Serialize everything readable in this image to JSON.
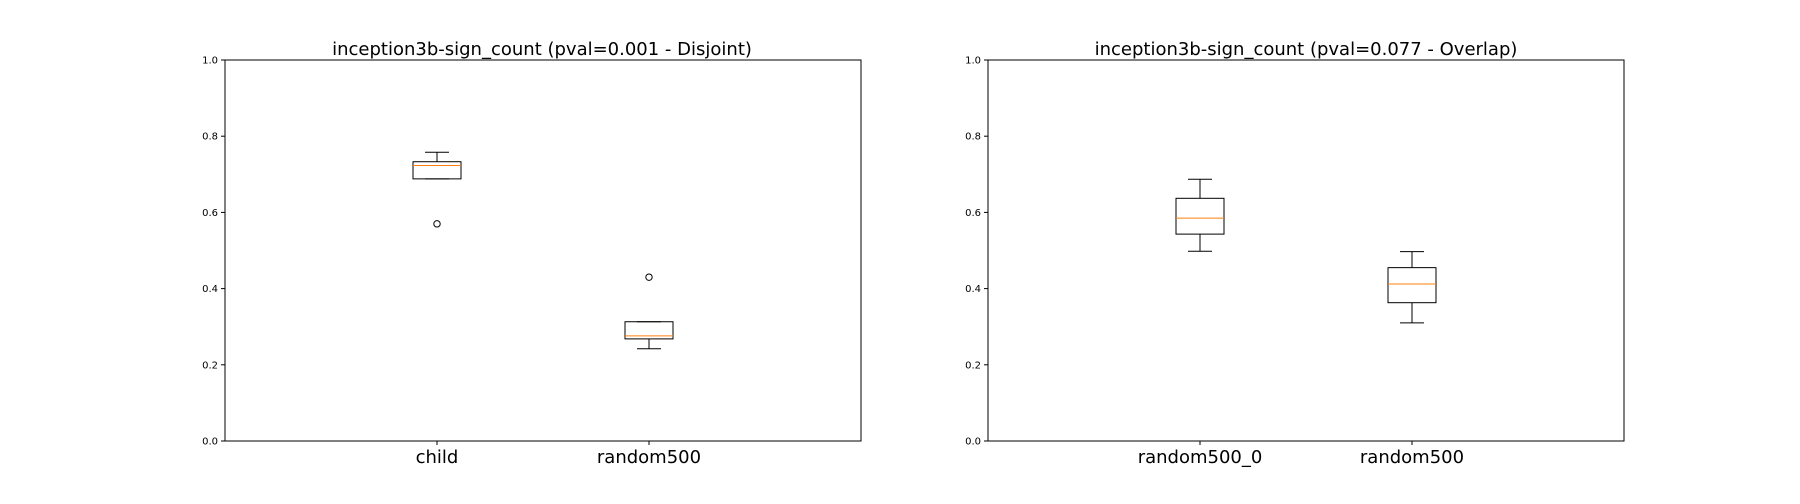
{
  "chart_data": [
    {
      "type": "box",
      "title": "inception3b-sign_count (pval=0.001 - Disjoint)",
      "xlabel": "",
      "ylabel": "",
      "ylim": [
        0.0,
        1.0
      ],
      "yticks": [
        "0.0",
        "0.2",
        "0.4",
        "0.6",
        "0.8",
        "1.0"
      ],
      "grid": false,
      "categories": [
        "child",
        "random500"
      ],
      "boxes": [
        {
          "whisker_low": 0.688,
          "q1": 0.688,
          "median": 0.723,
          "q3": 0.733,
          "whisker_high": 0.758,
          "outliers": [
            0.57
          ]
        },
        {
          "whisker_low": 0.242,
          "q1": 0.268,
          "median": 0.276,
          "q3": 0.313,
          "whisker_high": 0.313,
          "outliers": [
            0.43
          ]
        }
      ]
    },
    {
      "type": "box",
      "title": "inception3b-sign_count (pval=0.077 - Overlap)",
      "xlabel": "",
      "ylabel": "",
      "ylim": [
        0.0,
        1.0
      ],
      "yticks": [
        "0.0",
        "0.2",
        "0.4",
        "0.6",
        "0.8",
        "1.0"
      ],
      "grid": false,
      "categories": [
        "random500_0",
        "random500"
      ],
      "boxes": [
        {
          "whisker_low": 0.498,
          "q1": 0.543,
          "median": 0.585,
          "q3": 0.637,
          "whisker_high": 0.687,
          "outliers": []
        },
        {
          "whisker_low": 0.31,
          "q1": 0.363,
          "median": 0.412,
          "q3": 0.455,
          "whisker_high": 0.497,
          "outliers": []
        }
      ]
    }
  ],
  "colors": {
    "box": "#000000",
    "median": "#ff7f0e",
    "axes": "#000000"
  }
}
